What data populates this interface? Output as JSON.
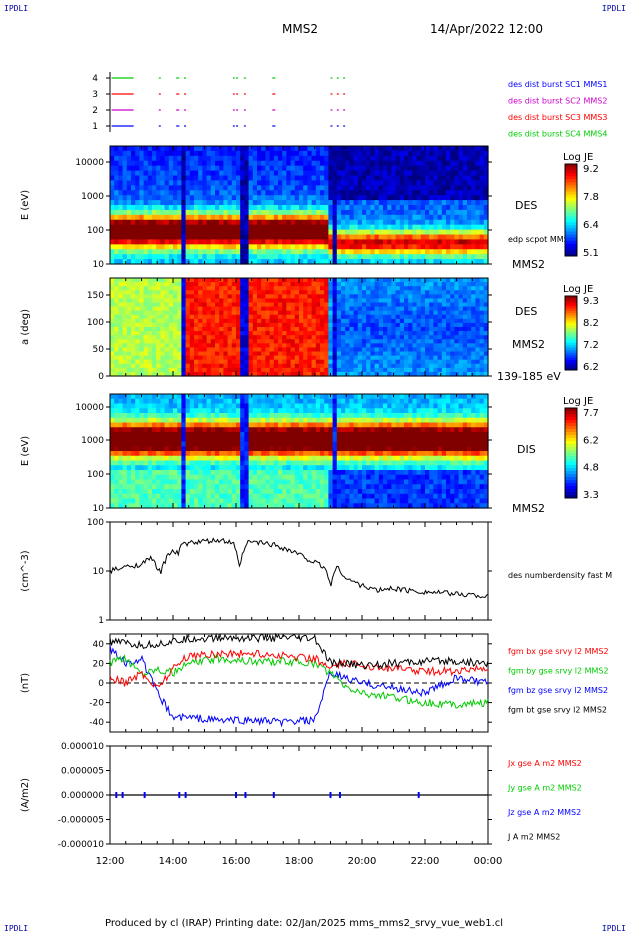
{
  "header": {
    "corner_label": "IPDLI",
    "spacecraft": "MMS2",
    "datetime": "14/Apr/2022 12:00"
  },
  "footer": {
    "text": "Produced by cl (IRAP)   Printing date: 02/Jan/2025   mms_mms2_srvy_vue_web1.cl"
  },
  "time_axis": {
    "labels": [
      "12:00",
      "14:00",
      "16:00",
      "18:00",
      "20:00",
      "22:00",
      "00:00"
    ],
    "range_hours": [
      12,
      24
    ]
  },
  "colors": {
    "red": "#ff0000",
    "green": "#00cc00",
    "blue": "#0000ff",
    "magenta": "#cc00cc",
    "black": "#000000"
  },
  "chart_data": [
    {
      "type": "line",
      "panel": "burst",
      "yticks": [
        "1",
        "2",
        "3",
        "4"
      ],
      "legend": [
        {
          "label": "des dist burst SC1 MMS1",
          "color": "#0000ff"
        },
        {
          "label": "des dist burst SC2 MMS2",
          "color": "#cc00cc"
        },
        {
          "label": "des dist burst SC3 MMS3",
          "color": "#ff0000"
        },
        {
          "label": "des dist burst SC4 MMS4",
          "color": "#00cc00"
        }
      ],
      "burst_intervals_hours": [
        [
          12.05,
          12.75
        ],
        [
          13.55,
          13.6
        ],
        [
          14.1,
          14.2
        ],
        [
          14.35,
          14.4
        ],
        [
          15.9,
          15.95
        ],
        [
          16.0,
          16.05
        ],
        [
          16.25,
          16.3
        ],
        [
          17.15,
          17.25
        ],
        [
          19.0,
          19.05
        ],
        [
          19.2,
          19.25
        ],
        [
          19.4,
          19.45
        ]
      ]
    },
    {
      "type": "heatmap",
      "panel": "des_energy",
      "ylabel": "E (eV)",
      "yticks": [
        "10",
        "100",
        "1000",
        "10000"
      ],
      "right_labels": [
        "DES",
        "edp scpot MMS2",
        "MMS2"
      ],
      "colorbar": {
        "title": "Log JE",
        "ticks": [
          "9.2",
          "7.8",
          "6.4",
          "5.1"
        ]
      }
    },
    {
      "type": "heatmap",
      "panel": "des_pitch",
      "ylabel": "a (deg)",
      "yticks": [
        "0",
        "50",
        "100",
        "150"
      ],
      "right_labels": [
        "DES",
        "MMS2",
        "139-185 eV"
      ],
      "colorbar": {
        "title": "Log JE",
        "ticks": [
          "9.3",
          "8.2",
          "7.2",
          "6.2"
        ]
      }
    },
    {
      "type": "heatmap",
      "panel": "dis_energy",
      "ylabel": "E (eV)",
      "yticks": [
        "10",
        "100",
        "1000",
        "10000"
      ],
      "right_labels": [
        "DIS",
        "MMS2"
      ],
      "colorbar": {
        "title": "Log JE",
        "ticks": [
          "7.7",
          "6.2",
          "4.8",
          "3.3"
        ]
      }
    },
    {
      "type": "line",
      "panel": "density",
      "ylabel": "(cm^-3)",
      "yticks": [
        "1",
        "10",
        "100"
      ],
      "ylim": [
        1,
        100
      ],
      "log": true,
      "series": [
        {
          "name": "des numberdensity fast M",
          "color": "#000000",
          "x": [
            12.0,
            12.5,
            13.0,
            13.3,
            13.6,
            14.0,
            14.15,
            14.3,
            14.6,
            15.0,
            15.5,
            15.9,
            16.1,
            16.4,
            16.8,
            17.2,
            17.6,
            18.0,
            18.4,
            18.8,
            19.0,
            19.2,
            19.5,
            20.0,
            20.5,
            21.0,
            21.5,
            22.0,
            22.5,
            23.0,
            23.5,
            24.0
          ],
          "values": [
            10,
            12,
            14,
            18,
            9,
            28,
            22,
            35,
            38,
            40,
            42,
            38,
            11,
            40,
            38,
            35,
            28,
            22,
            16,
            12,
            5,
            12,
            7,
            5,
            4,
            4.5,
            4,
            3.8,
            3.6,
            3.4,
            3.3,
            3.0
          ]
        }
      ]
    },
    {
      "type": "line",
      "panel": "magnetic_field",
      "ylabel": "(nT)",
      "yticks": [
        "-40",
        "-20",
        "0",
        "20",
        "40"
      ],
      "ylim": [
        -50,
        50
      ],
      "series": [
        {
          "name": "fgm bx gse srvy l2 MMS2",
          "color": "#ff0000",
          "x": [
            12.0,
            12.5,
            13.0,
            13.5,
            14.0,
            14.5,
            15.5,
            16.5,
            17.5,
            18.5,
            19.0,
            19.5,
            20.0,
            21.0,
            22.0,
            23.0,
            24.0
          ],
          "values": [
            5,
            0,
            10,
            -5,
            15,
            28,
            30,
            30,
            28,
            25,
            15,
            20,
            18,
            15,
            12,
            12,
            15
          ]
        },
        {
          "name": "fgm by gse srvy l2 MMS2",
          "color": "#00cc00",
          "x": [
            12.0,
            12.5,
            13.0,
            13.5,
            14.0,
            14.5,
            15.5,
            16.5,
            17.5,
            18.5,
            19.0,
            19.5,
            20.0,
            21.0,
            22.0,
            23.0,
            24.0
          ],
          "values": [
            20,
            25,
            10,
            15,
            10,
            20,
            25,
            22,
            22,
            20,
            10,
            -5,
            -10,
            -15,
            -20,
            -22,
            -20
          ]
        },
        {
          "name": "fgm bz gse srvy l2 MMS2",
          "color": "#0000ff",
          "x": [
            12.0,
            12.5,
            13.0,
            13.5,
            14.0,
            14.5,
            15.5,
            16.5,
            17.5,
            18.5,
            19.0,
            19.5,
            20.0,
            21.0,
            22.0,
            23.0,
            24.0
          ],
          "values": [
            35,
            20,
            25,
            -10,
            -35,
            -35,
            -38,
            -38,
            -40,
            -38,
            10,
            5,
            0,
            -5,
            -10,
            5,
            0
          ]
        },
        {
          "name": "fgm bt gse srvy l2 MMS2",
          "color": "#000000",
          "x": [
            12.0,
            12.5,
            13.0,
            13.5,
            14.0,
            14.5,
            15.5,
            16.5,
            17.5,
            18.5,
            19.0,
            19.5,
            20.0,
            21.0,
            22.0,
            23.0,
            24.0
          ],
          "values": [
            42,
            40,
            38,
            40,
            42,
            45,
            46,
            46,
            46,
            45,
            20,
            20,
            18,
            20,
            22,
            22,
            20
          ]
        }
      ]
    },
    {
      "type": "line",
      "panel": "current",
      "ylabel": "(A/m2)",
      "yticks": [
        "-0.000010",
        "-0.000005",
        "0.000000",
        "0.000005",
        "0.000010"
      ],
      "ylim": [
        -1e-05,
        1e-05
      ],
      "legend": [
        {
          "label": "Jx gse A m2 MMS2",
          "color": "#ff0000"
        },
        {
          "label": "Jy gse A m2 MMS2",
          "color": "#00cc00"
        },
        {
          "label": "Jz gse A m2 MMS2",
          "color": "#0000ff"
        },
        {
          "label": "J A m2 MMS2",
          "color": "#000000"
        }
      ]
    }
  ]
}
